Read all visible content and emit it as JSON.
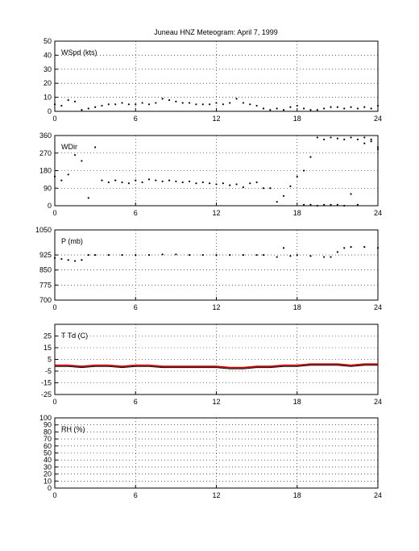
{
  "title": "Juneau HNZ Meteogram:      April  7, 1999",
  "chart_data": [
    {
      "type": "scatter",
      "label": "WSpd (kts)",
      "xlim": [
        0,
        24
      ],
      "xticks": [
        0,
        6,
        12,
        18,
        24
      ],
      "ylim": [
        0,
        50
      ],
      "yticks": [
        0,
        10,
        20,
        30,
        40,
        50
      ],
      "grid": true,
      "series": [
        {
          "color": "#000000",
          "x": [
            0,
            0.5,
            1,
            1.5,
            2,
            2.5,
            3,
            3.5,
            4,
            4.5,
            5,
            5.5,
            6,
            6.5,
            7,
            7.5,
            8,
            8.5,
            9,
            9.5,
            10,
            10.5,
            11,
            11.5,
            12,
            12.5,
            13,
            13.5,
            14,
            14.5,
            15,
            15.5,
            16,
            16.5,
            17,
            17.5,
            18,
            18.5,
            19,
            19.5,
            20,
            20.5,
            21,
            21.5,
            22,
            22.5,
            23,
            23.5,
            24
          ],
          "y": [
            5,
            4,
            8,
            7,
            1,
            2,
            3,
            4,
            5,
            5,
            6,
            5,
            5,
            6,
            5,
            6,
            9,
            8,
            7,
            6,
            6,
            5,
            5,
            5,
            6,
            5,
            6,
            9,
            6,
            5,
            4,
            2,
            1,
            2,
            1,
            3,
            4,
            2,
            1,
            1,
            2,
            3,
            3,
            2,
            3,
            2,
            3,
            2,
            4
          ]
        }
      ]
    },
    {
      "type": "scatter",
      "label": "WDir",
      "xlim": [
        0,
        24
      ],
      "xticks": [
        0,
        6,
        12,
        18,
        24
      ],
      "ylim": [
        0,
        360
      ],
      "yticks": [
        0,
        90,
        180,
        270,
        360
      ],
      "grid": true,
      "series": [
        {
          "color": "#000000",
          "x": [
            0,
            0.5,
            1,
            1.5,
            2,
            2.5,
            3,
            3.5,
            4,
            4.5,
            5,
            5.5,
            6,
            6.5,
            7,
            7.5,
            8,
            8.5,
            9,
            9.5,
            10,
            10.5,
            11,
            11.5,
            12,
            12.5,
            13,
            13.5,
            14,
            14.5,
            15,
            15.5,
            16,
            16.5,
            17,
            17.5,
            18,
            18.5,
            19,
            19.5,
            20,
            20.5,
            21,
            21.5,
            22,
            22.5,
            23,
            23.5,
            24
          ],
          "y": [
            150,
            130,
            160,
            260,
            230,
            40,
            300,
            130,
            120,
            130,
            120,
            115,
            130,
            120,
            135,
            130,
            125,
            130,
            125,
            120,
            125,
            115,
            120,
            115,
            110,
            115,
            105,
            110,
            95,
            115,
            120,
            90,
            90,
            20,
            50,
            100,
            150,
            180,
            250,
            350,
            340,
            350,
            345,
            340,
            350,
            340,
            320,
            340,
            290
          ]
        },
        {
          "color": "#000000",
          "x": [
            18.5,
            19,
            19.5,
            20,
            20.5,
            21,
            21.5,
            22,
            22.5,
            23,
            23.5,
            24
          ],
          "y": [
            5,
            5,
            0,
            5,
            5,
            5,
            0,
            60,
            5,
            350,
            330,
            300
          ]
        }
      ]
    },
    {
      "type": "scatter",
      "label": "P (mb)",
      "xlim": [
        0,
        24
      ],
      "xticks": [
        0,
        6,
        12,
        18,
        24
      ],
      "ylim": [
        700,
        1050
      ],
      "yticks": [
        700,
        775,
        850,
        925,
        1050
      ],
      "grid": true,
      "series": [
        {
          "color": "#000000",
          "x": [
            0,
            0.5,
            1,
            1.5,
            2,
            2.5,
            3,
            4,
            5,
            6,
            7,
            8,
            9,
            10,
            11,
            12,
            13,
            14,
            15,
            15.5,
            16.5,
            17,
            17.5,
            18,
            19,
            20,
            20.5,
            21,
            21.5,
            22,
            23,
            24
          ],
          "y": [
            910,
            905,
            900,
            895,
            900,
            925,
            925,
            925,
            925,
            925,
            925,
            928,
            928,
            925,
            925,
            925,
            925,
            925,
            925,
            925,
            915,
            960,
            920,
            925,
            920,
            915,
            915,
            940,
            960,
            965,
            965,
            960
          ]
        }
      ]
    },
    {
      "type": "line",
      "label": "T Td (C)",
      "xlim": [
        0,
        24
      ],
      "xticks": [
        0,
        6,
        12,
        18,
        24
      ],
      "ylim": [
        -25,
        35
      ],
      "yticks": [
        -25,
        -15,
        -5,
        5,
        15,
        25
      ],
      "grid": true,
      "series": [
        {
          "color": "#cc0000",
          "x": [
            0,
            1,
            2,
            3,
            4,
            5,
            6,
            7,
            8,
            9,
            10,
            11,
            12,
            13,
            14,
            15,
            16,
            17,
            18,
            19,
            20,
            21,
            22,
            23,
            24
          ],
          "y": [
            0,
            0,
            -1,
            0,
            0,
            -1,
            0,
            0,
            -1,
            -1,
            -1,
            -1,
            -1,
            -2,
            -2,
            -1,
            -1,
            0,
            0,
            1,
            1,
            1,
            0,
            1,
            1
          ]
        },
        {
          "color": "#000000",
          "x": [
            0,
            1,
            2,
            3,
            4,
            5,
            6,
            7,
            8,
            9,
            10,
            11,
            12,
            13,
            14,
            15,
            16,
            17,
            18,
            19,
            20,
            21,
            22,
            23,
            24
          ],
          "y": [
            -1,
            -1,
            -2,
            -1,
            -1,
            -2,
            -1,
            -1,
            -2,
            -2,
            -2,
            -2,
            -2,
            -3,
            -3,
            -2,
            -2,
            -1,
            -1,
            0,
            0,
            0,
            -1,
            0,
            0
          ]
        }
      ]
    },
    {
      "type": "line",
      "label": "RH (%)",
      "xlim": [
        0,
        24
      ],
      "xticks": [
        0,
        6,
        12,
        18,
        24
      ],
      "ylim": [
        0,
        100
      ],
      "yticks": [
        0,
        10,
        20,
        30,
        40,
        50,
        60,
        70,
        80,
        90,
        100
      ],
      "grid": true,
      "series": []
    }
  ]
}
